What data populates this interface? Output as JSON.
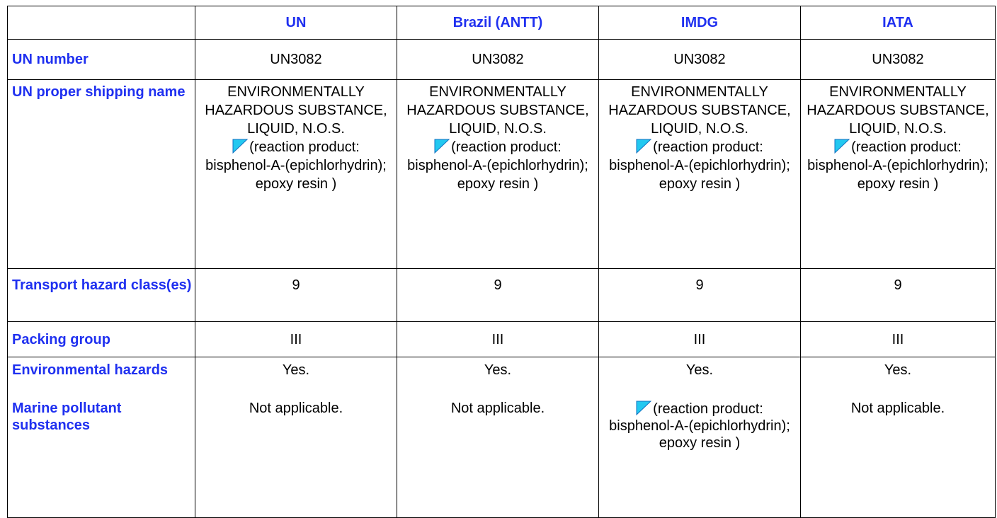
{
  "table": {
    "columns": [
      "UN",
      "Brazil (ANTT)",
      "IMDG",
      "IATA"
    ],
    "rows": [
      {
        "label": "UN number",
        "cells": [
          "UN3082",
          "UN3082",
          "UN3082",
          "UN3082"
        ]
      },
      {
        "label": "UN proper shipping name",
        "cells": [
          {
            "name": "ENVIRONMENTALLY HAZARDOUS SUBSTANCE, LIQUID, N.O.S.",
            "note": "(reaction product: bisphenol-A-(epichlorhydrin); epoxy resin )"
          },
          {
            "name": "ENVIRONMENTALLY HAZARDOUS SUBSTANCE, LIQUID, N.O.S.",
            "note": "(reaction product: bisphenol-A-(epichlorhydrin); epoxy resin )"
          },
          {
            "name": "ENVIRONMENTALLY HAZARDOUS SUBSTANCE, LIQUID, N.O.S.",
            "note": "(reaction product: bisphenol-A-(epichlorhydrin); epoxy resin )"
          },
          {
            "name": "ENVIRONMENTALLY HAZARDOUS SUBSTANCE, LIQUID, N.O.S.",
            "note": "(reaction product: bisphenol-A-(epichlorhydrin); epoxy resin )"
          }
        ]
      },
      {
        "label": "Transport hazard class(es)",
        "cells": [
          "9",
          "9",
          "9",
          "9"
        ]
      },
      {
        "label": "Packing group",
        "cells": [
          "III",
          "III",
          "III",
          "III"
        ]
      }
    ],
    "environmental": {
      "hazards_label": "Environmental hazards",
      "marine_label": "Marine pollutant substances",
      "hazards": [
        "Yes.",
        "Yes.",
        "Yes.",
        "Yes."
      ],
      "marine": [
        "Not applicable.",
        "Not applicable.",
        "(reaction product: bisphenol-A-(epichlorhydrin); epoxy resin )",
        "Not applicable."
      ]
    }
  }
}
